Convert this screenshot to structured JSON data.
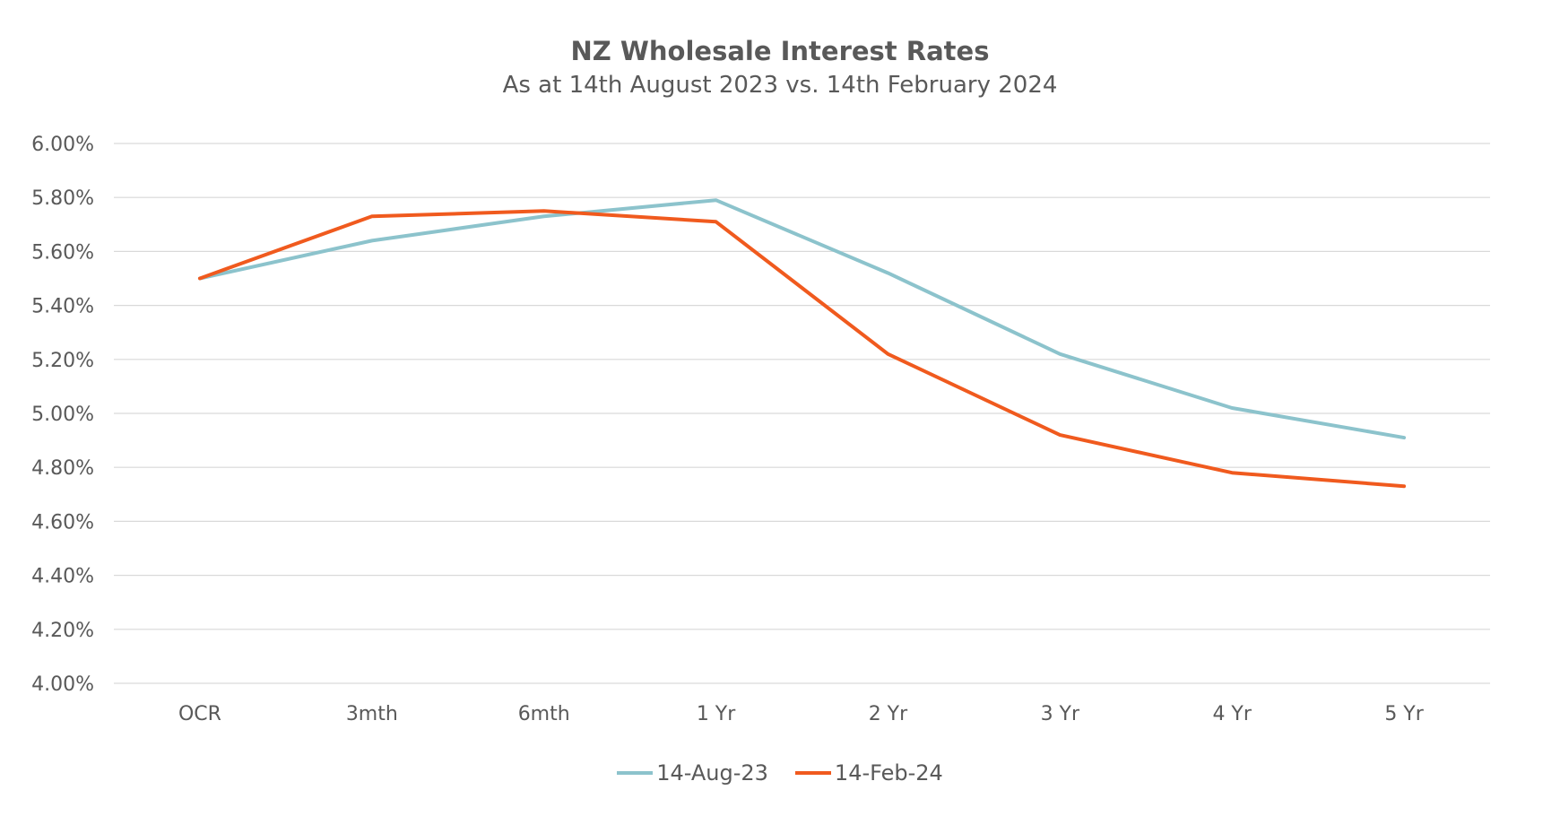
{
  "chart_data": {
    "type": "line",
    "title": "NZ Wholesale Interest Rates",
    "subtitle": "As at 14th August 2023 vs. 14th February 2024",
    "categories": [
      "OCR",
      "3mth",
      "6mth",
      "1 Yr",
      "2 Yr",
      "3 Yr",
      "4 Yr",
      "5 Yr"
    ],
    "yticks": [
      "4.00%",
      "4.20%",
      "4.40%",
      "4.60%",
      "4.80%",
      "5.00%",
      "5.20%",
      "5.40%",
      "5.60%",
      "5.80%",
      "6.00%"
    ],
    "ylim": [
      4.0,
      6.0
    ],
    "grid": true,
    "legend_position": "bottom",
    "series": [
      {
        "name": "14-Aug-23",
        "color": "#8cc3cc",
        "values": [
          5.5,
          5.64,
          5.73,
          5.79,
          5.52,
          5.22,
          5.02,
          4.91
        ]
      },
      {
        "name": "14-Feb-24",
        "color": "#f05a1e",
        "values": [
          5.5,
          5.73,
          5.75,
          5.71,
          5.22,
          4.92,
          4.78,
          4.73
        ]
      }
    ]
  }
}
